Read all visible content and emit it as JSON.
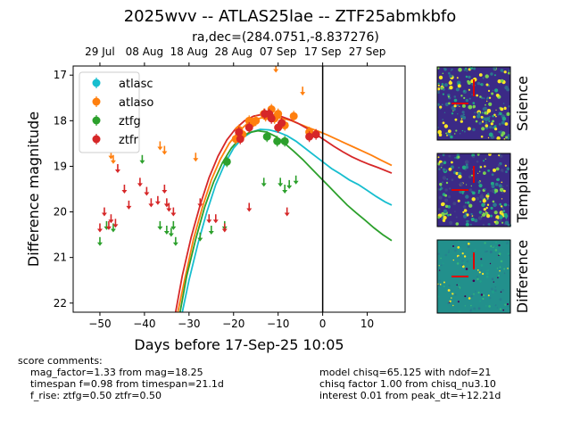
{
  "header": {
    "title": "2025wvv -- ATLAS25lae -- ZTF25abmkbfo",
    "subtitle": "ra,dec=(284.0751,-8.837276)"
  },
  "chart_data": {
    "type": "scatter",
    "xlabel": "Days before 17-Sep-25 10:05",
    "ylabel": "Difference magnitude",
    "xlim": [
      -56,
      18.5
    ],
    "ylim": [
      22.2,
      16.8
    ],
    "x_ticks": [
      -50,
      -40,
      -30,
      -20,
      -10,
      0,
      10
    ],
    "x_tick_labels": [
      "−50",
      "−40",
      "−30",
      "−20",
      "−10",
      "0",
      "10"
    ],
    "y_ticks": [
      17,
      18,
      19,
      20,
      21,
      22
    ],
    "top_ticks": [
      {
        "x": -50,
        "label": "29 Jul"
      },
      {
        "x": -40,
        "label": "08 Aug"
      },
      {
        "x": -30,
        "label": "18 Aug"
      },
      {
        "x": -20,
        "label": "28 Aug"
      },
      {
        "x": -10,
        "label": "07 Sep"
      },
      {
        "x": 0,
        "label": "17 Sep"
      },
      {
        "x": 10,
        "label": "27 Sep"
      }
    ],
    "vline_x": 0,
    "legend_position": "upper-left",
    "series": [
      {
        "name": "atlasc",
        "color": "#17becf",
        "detections": [],
        "upper_limits": [],
        "model": [
          [
            -31.5,
            22.2
          ],
          [
            -30,
            21.5
          ],
          [
            -28,
            20.7
          ],
          [
            -26,
            20.0
          ],
          [
            -24,
            19.4
          ],
          [
            -22,
            18.95
          ],
          [
            -20,
            18.6
          ],
          [
            -18,
            18.38
          ],
          [
            -16,
            18.25
          ],
          [
            -14,
            18.19
          ],
          [
            -12,
            18.2
          ],
          [
            -10,
            18.25
          ],
          [
            -8,
            18.33
          ],
          [
            -6,
            18.45
          ],
          [
            -4,
            18.6
          ],
          [
            -2,
            18.75
          ],
          [
            0,
            18.9
          ],
          [
            2,
            19.05
          ],
          [
            4,
            19.17
          ],
          [
            6,
            19.3
          ],
          [
            8,
            19.4
          ],
          [
            10,
            19.53
          ],
          [
            12,
            19.66
          ],
          [
            14,
            19.78
          ],
          [
            15.5,
            19.85
          ]
        ]
      },
      {
        "name": "atlaso",
        "color": "#ff7f0e",
        "detections": [
          [
            -19.5,
            18.4
          ],
          [
            -18.8,
            18.2
          ],
          [
            -18,
            18.3
          ],
          [
            -16.5,
            18.0
          ],
          [
            -15.8,
            18.05
          ],
          [
            -15,
            18.0
          ],
          [
            -13.2,
            17.85
          ],
          [
            -12.8,
            17.9
          ],
          [
            -11.5,
            17.75
          ],
          [
            -10.8,
            17.95
          ],
          [
            -10,
            17.85
          ],
          [
            -8.5,
            18.1
          ],
          [
            -6.5,
            17.9
          ],
          [
            -3,
            18.25
          ]
        ],
        "upper_limits": [
          [
            -47.5,
            18.75
          ],
          [
            -47,
            18.85
          ],
          [
            -36.5,
            18.55
          ],
          [
            -35.5,
            18.65
          ],
          [
            -28.5,
            18.8
          ],
          [
            -10.5,
            16.85
          ],
          [
            -4.5,
            17.35
          ]
        ],
        "model": [
          [
            -32.5,
            22.2
          ],
          [
            -31,
            21.5
          ],
          [
            -29,
            20.6
          ],
          [
            -27,
            19.9
          ],
          [
            -25,
            19.3
          ],
          [
            -23,
            18.85
          ],
          [
            -21,
            18.5
          ],
          [
            -19,
            18.25
          ],
          [
            -17,
            18.07
          ],
          [
            -15,
            17.97
          ],
          [
            -13,
            17.92
          ],
          [
            -11,
            17.92
          ],
          [
            -9,
            17.95
          ],
          [
            -7,
            18.0
          ],
          [
            -5,
            18.08
          ],
          [
            -3,
            18.16
          ],
          [
            -1,
            18.23
          ],
          [
            1,
            18.31
          ],
          [
            3,
            18.4
          ],
          [
            5,
            18.49
          ],
          [
            7,
            18.58
          ],
          [
            9,
            18.67
          ],
          [
            11,
            18.76
          ],
          [
            13,
            18.86
          ],
          [
            15.5,
            18.98
          ]
        ]
      },
      {
        "name": "ztfg",
        "color": "#2ca02c",
        "detections": [
          [
            -21.5,
            18.9
          ],
          [
            -12.5,
            18.35
          ],
          [
            -10.2,
            18.45
          ],
          [
            -8.5,
            18.45
          ]
        ],
        "upper_limits": [
          [
            -50,
            20.65
          ],
          [
            -48.5,
            20.3
          ],
          [
            -47,
            20.35
          ],
          [
            -40.5,
            18.85
          ],
          [
            -36.5,
            20.3
          ],
          [
            -35,
            20.4
          ],
          [
            -34,
            20.45
          ],
          [
            -33.5,
            20.3
          ],
          [
            -33,
            20.65
          ],
          [
            -27.5,
            20.55
          ],
          [
            -25,
            20.4
          ],
          [
            -22,
            20.3
          ],
          [
            -13.2,
            19.35
          ],
          [
            -9.5,
            19.35
          ],
          [
            -8.5,
            19.5
          ],
          [
            -7.5,
            19.4
          ],
          [
            -6,
            19.3
          ]
        ],
        "model": [
          [
            -32,
            22.2
          ],
          [
            -30.5,
            21.4
          ],
          [
            -28.5,
            20.6
          ],
          [
            -26.5,
            19.9
          ],
          [
            -24.5,
            19.35
          ],
          [
            -22.5,
            18.92
          ],
          [
            -20.5,
            18.6
          ],
          [
            -18.5,
            18.38
          ],
          [
            -16.5,
            18.26
          ],
          [
            -14.5,
            18.22
          ],
          [
            -12.5,
            18.25
          ],
          [
            -10.5,
            18.35
          ],
          [
            -8.5,
            18.5
          ],
          [
            -6.5,
            18.67
          ],
          [
            -4.5,
            18.85
          ],
          [
            -2.5,
            19.05
          ],
          [
            -0.5,
            19.25
          ],
          [
            1.5,
            19.45
          ],
          [
            3.5,
            19.65
          ],
          [
            5.5,
            19.85
          ],
          [
            7.5,
            20.02
          ],
          [
            9.5,
            20.18
          ],
          [
            11.5,
            20.35
          ],
          [
            13.5,
            20.5
          ],
          [
            15.5,
            20.63
          ]
        ]
      },
      {
        "name": "ztfr",
        "color": "#d62728",
        "detections": [
          [
            -18.8,
            18.25
          ],
          [
            -18.5,
            18.4
          ],
          [
            -16.5,
            18.15
          ],
          [
            -13,
            17.85
          ],
          [
            -12,
            17.85
          ],
          [
            -11.5,
            17.95
          ],
          [
            -10,
            18.15
          ],
          [
            -9.2,
            18.05
          ],
          [
            -3,
            18.35
          ],
          [
            -1.5,
            18.3
          ]
        ],
        "upper_limits": [
          [
            -50,
            20.35
          ],
          [
            -49,
            20.0
          ],
          [
            -48,
            20.3
          ],
          [
            -47.5,
            20.15
          ],
          [
            -46.5,
            20.25
          ],
          [
            -46,
            19.05
          ],
          [
            -44.5,
            19.5
          ],
          [
            -43.5,
            19.85
          ],
          [
            -41,
            19.35
          ],
          [
            -39.5,
            19.55
          ],
          [
            -38.5,
            19.8
          ],
          [
            -37,
            19.75
          ],
          [
            -35.5,
            19.5
          ],
          [
            -35,
            19.8
          ],
          [
            -34.5,
            19.9
          ],
          [
            -33.5,
            20.0
          ],
          [
            -27.5,
            19.8
          ],
          [
            -25.5,
            20.15
          ],
          [
            -24,
            20.15
          ],
          [
            -22,
            20.35
          ],
          [
            -16.5,
            19.9
          ],
          [
            -8,
            20.0
          ]
        ],
        "model": [
          [
            -33,
            22.2
          ],
          [
            -31.5,
            21.4
          ],
          [
            -29.5,
            20.55
          ],
          [
            -27.5,
            19.85
          ],
          [
            -25.5,
            19.25
          ],
          [
            -23.5,
            18.78
          ],
          [
            -21.5,
            18.42
          ],
          [
            -19.5,
            18.17
          ],
          [
            -17.5,
            18.0
          ],
          [
            -15.5,
            17.9
          ],
          [
            -13.5,
            17.86
          ],
          [
            -11.5,
            17.86
          ],
          [
            -9.5,
            17.9
          ],
          [
            -7.5,
            17.97
          ],
          [
            -5.5,
            18.06
          ],
          [
            -3.5,
            18.17
          ],
          [
            -1.5,
            18.3
          ],
          [
            0.5,
            18.43
          ],
          [
            2.5,
            18.56
          ],
          [
            4.5,
            18.68
          ],
          [
            6.5,
            18.79
          ],
          [
            8.5,
            18.88
          ],
          [
            10.5,
            18.96
          ],
          [
            12.5,
            19.03
          ],
          [
            15.5,
            19.15
          ]
        ]
      }
    ]
  },
  "stamps": [
    {
      "label": "Science",
      "palette": "science"
    },
    {
      "label": "Template",
      "palette": "template"
    },
    {
      "label": "Difference",
      "palette": "difference"
    }
  ],
  "comments": {
    "left": "score comments:\n    mag_factor=1.33 from mag=18.25\n    timespan f=0.98 from timespan=21.1d\n    f_rise: ztfg=0.50 ztfr=0.50",
    "right": "model chisq=65.125 with ndof=21\nchisq factor 1.00 from chisq_nu3.10\ninterest 0.01 from peak_dt=+12.21d"
  }
}
